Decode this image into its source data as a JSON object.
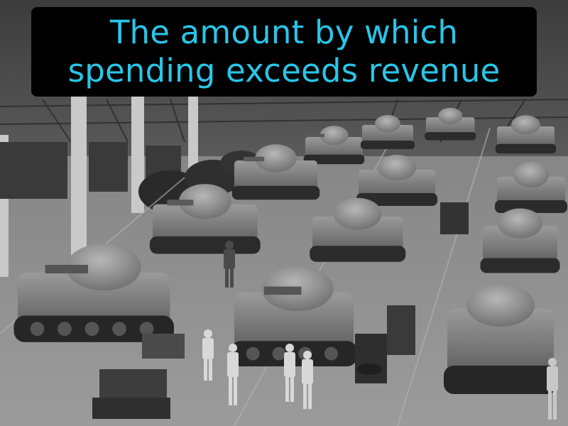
{
  "caption": {
    "line1": "The amount by which",
    "line2": "spending exceeds revenue",
    "text_color": "#29c6e8",
    "box_color": "#000000"
  },
  "photo": {
    "style": "black-and-white"
  }
}
